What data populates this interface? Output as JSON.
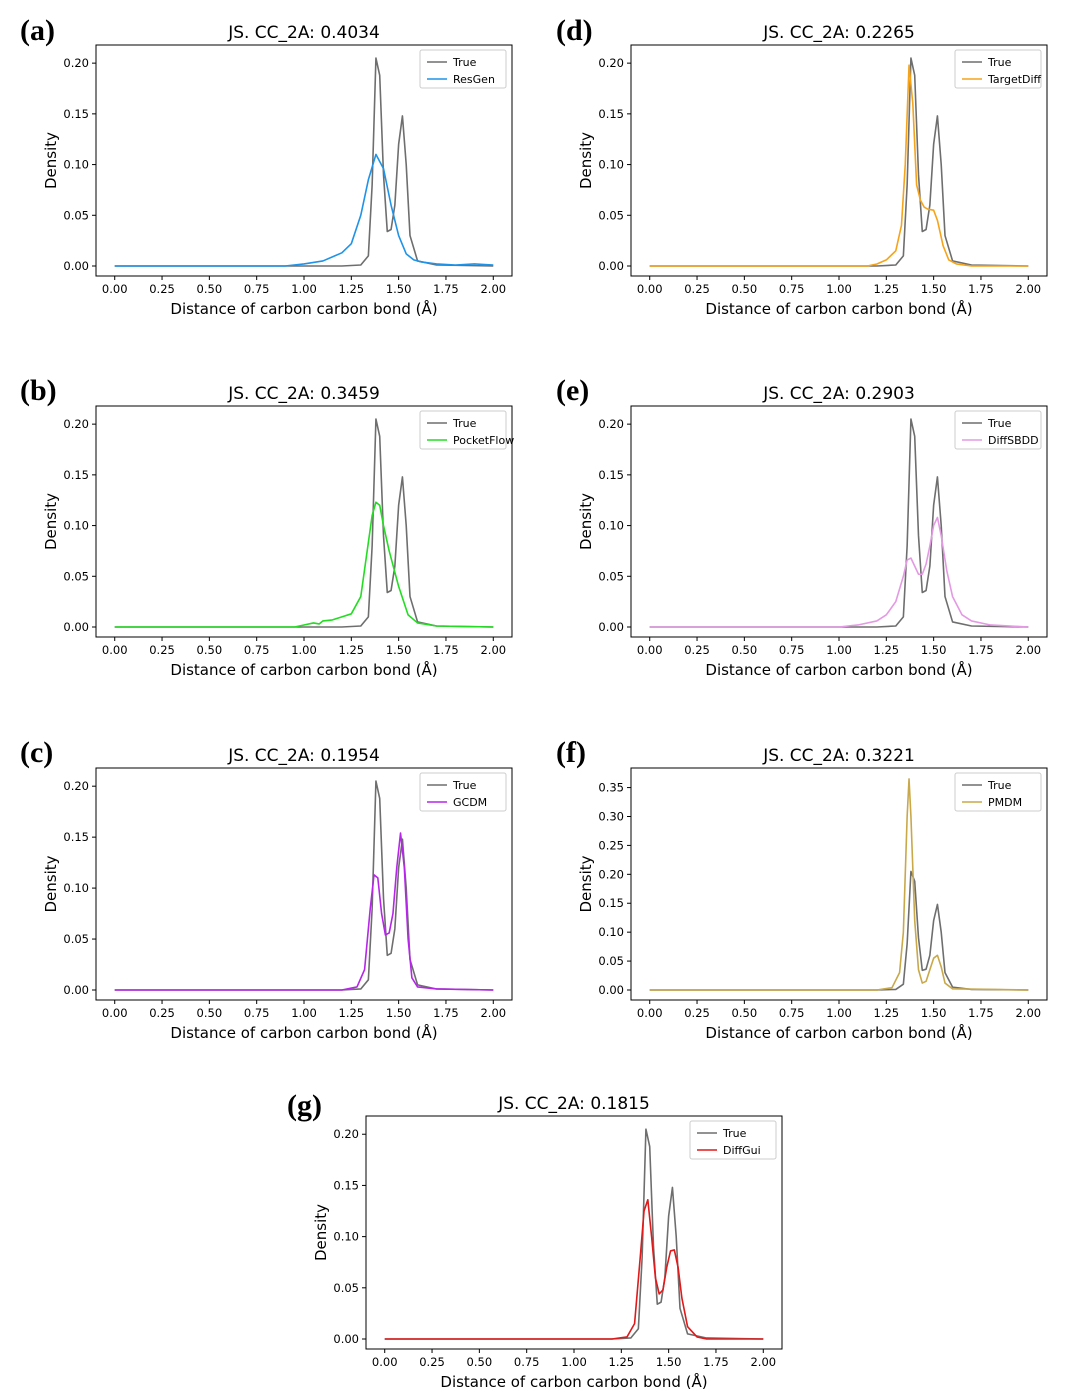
{
  "figure": {
    "xlabel": "Distance of carbon carbon bond (Å)",
    "ylabel": "Density"
  },
  "colors": {
    "true": "#6e6e6e",
    "ResGen": "#1f93e8",
    "PocketFlow": "#22dd22",
    "GCDM": "#b526e8",
    "TargetDiff": "#f5a31a",
    "DiffSBDD": "#e39ae3",
    "PMDM": "#c9a84a",
    "DiffGui": "#e0191a"
  },
  "chart_data": [
    {
      "panel": "(a)",
      "type": "line",
      "title": "JS. CC_2A: 0.4034",
      "xlabel": "Distance of carbon carbon bond (Å)",
      "ylabel": "Density",
      "xlim": [
        0,
        2
      ],
      "ylim": [
        0,
        0.21
      ],
      "xticks": [
        "0.00",
        "0.25",
        "0.50",
        "0.75",
        "1.00",
        "1.25",
        "1.50",
        "1.75",
        "2.00"
      ],
      "yticks": [
        "0.00",
        "0.05",
        "0.10",
        "0.15",
        "0.20"
      ],
      "legend": "top-right",
      "series": [
        {
          "name": "True",
          "color_key": "true",
          "x": [
            0,
            1.2,
            1.3,
            1.34,
            1.36,
            1.38,
            1.4,
            1.42,
            1.44,
            1.46,
            1.48,
            1.5,
            1.52,
            1.54,
            1.56,
            1.6,
            1.7,
            2.0
          ],
          "y": [
            0,
            0,
            0.001,
            0.01,
            0.08,
            0.205,
            0.188,
            0.09,
            0.034,
            0.036,
            0.06,
            0.12,
            0.148,
            0.1,
            0.03,
            0.005,
            0.001,
            0
          ]
        },
        {
          "name": "ResGen",
          "color_key": "ResGen",
          "x": [
            0,
            0.9,
            1.0,
            1.1,
            1.15,
            1.2,
            1.25,
            1.3,
            1.34,
            1.38,
            1.42,
            1.46,
            1.5,
            1.54,
            1.58,
            1.62,
            1.7,
            1.8,
            1.9,
            2.0
          ],
          "y": [
            0,
            0,
            0.002,
            0.005,
            0.009,
            0.013,
            0.022,
            0.05,
            0.085,
            0.11,
            0.096,
            0.06,
            0.03,
            0.012,
            0.006,
            0.004,
            0.002,
            0.001,
            0.002,
            0.001
          ]
        }
      ]
    },
    {
      "panel": "(b)",
      "type": "line",
      "title": "JS. CC_2A: 0.3459",
      "xlabel": "Distance of carbon carbon bond (Å)",
      "ylabel": "Density",
      "xlim": [
        0,
        2
      ],
      "ylim": [
        0,
        0.21
      ],
      "xticks": [
        "0.00",
        "0.25",
        "0.50",
        "0.75",
        "1.00",
        "1.25",
        "1.50",
        "1.75",
        "2.00"
      ],
      "yticks": [
        "0.00",
        "0.05",
        "0.10",
        "0.15",
        "0.20"
      ],
      "legend": "top-right",
      "series": [
        {
          "name": "True",
          "color_key": "true",
          "x": [
            0,
            1.2,
            1.3,
            1.34,
            1.36,
            1.38,
            1.4,
            1.42,
            1.44,
            1.46,
            1.48,
            1.5,
            1.52,
            1.54,
            1.56,
            1.6,
            1.7,
            2.0
          ],
          "y": [
            0,
            0,
            0.001,
            0.01,
            0.08,
            0.205,
            0.188,
            0.09,
            0.034,
            0.036,
            0.06,
            0.12,
            0.148,
            0.1,
            0.03,
            0.005,
            0.001,
            0
          ]
        },
        {
          "name": "PocketFlow",
          "color_key": "PocketFlow",
          "x": [
            0,
            0.95,
            1.0,
            1.05,
            1.08,
            1.1,
            1.15,
            1.2,
            1.25,
            1.3,
            1.33,
            1.36,
            1.38,
            1.4,
            1.42,
            1.45,
            1.5,
            1.55,
            1.6,
            1.7,
            2.0
          ],
          "y": [
            0,
            0,
            0.002,
            0.004,
            0.003,
            0.006,
            0.007,
            0.01,
            0.013,
            0.03,
            0.07,
            0.11,
            0.123,
            0.12,
            0.1,
            0.075,
            0.04,
            0.012,
            0.004,
            0.001,
            0
          ]
        }
      ]
    },
    {
      "panel": "(c)",
      "type": "line",
      "title": "JS. CC_2A: 0.1954",
      "xlabel": "Distance of carbon carbon bond (Å)",
      "ylabel": "Density",
      "xlim": [
        0,
        2
      ],
      "ylim": [
        0,
        0.21
      ],
      "xticks": [
        "0.00",
        "0.25",
        "0.50",
        "0.75",
        "1.00",
        "1.25",
        "1.50",
        "1.75",
        "2.00"
      ],
      "yticks": [
        "0.00",
        "0.05",
        "0.10",
        "0.15",
        "0.20"
      ],
      "legend": "top-right",
      "series": [
        {
          "name": "True",
          "color_key": "true",
          "x": [
            0,
            1.2,
            1.3,
            1.34,
            1.36,
            1.38,
            1.4,
            1.42,
            1.44,
            1.46,
            1.48,
            1.5,
            1.52,
            1.54,
            1.56,
            1.6,
            1.7,
            2.0
          ],
          "y": [
            0,
            0,
            0.001,
            0.01,
            0.08,
            0.205,
            0.188,
            0.09,
            0.034,
            0.036,
            0.06,
            0.12,
            0.148,
            0.1,
            0.03,
            0.005,
            0.001,
            0
          ]
        },
        {
          "name": "GCDM",
          "color_key": "GCDM",
          "x": [
            0,
            1.2,
            1.28,
            1.32,
            1.35,
            1.37,
            1.39,
            1.41,
            1.43,
            1.45,
            1.47,
            1.49,
            1.51,
            1.53,
            1.55,
            1.57,
            1.6,
            1.7,
            2.0
          ],
          "y": [
            0,
            0,
            0.003,
            0.02,
            0.08,
            0.113,
            0.11,
            0.075,
            0.054,
            0.056,
            0.075,
            0.12,
            0.154,
            0.12,
            0.05,
            0.012,
            0.003,
            0.001,
            0
          ]
        }
      ]
    },
    {
      "panel": "(d)",
      "type": "line",
      "title": "JS. CC_2A: 0.2265",
      "xlabel": "Distance of carbon carbon bond (Å)",
      "ylabel": "Density",
      "xlim": [
        0,
        2
      ],
      "ylim": [
        0,
        0.21
      ],
      "xticks": [
        "0.00",
        "0.25",
        "0.50",
        "0.75",
        "1.00",
        "1.25",
        "1.50",
        "1.75",
        "2.00"
      ],
      "yticks": [
        "0.00",
        "0.05",
        "0.10",
        "0.15",
        "0.20"
      ],
      "legend": "top-right",
      "series": [
        {
          "name": "True",
          "color_key": "true",
          "x": [
            0,
            1.2,
            1.3,
            1.34,
            1.36,
            1.38,
            1.4,
            1.42,
            1.44,
            1.46,
            1.48,
            1.5,
            1.52,
            1.54,
            1.56,
            1.6,
            1.7,
            2.0
          ],
          "y": [
            0,
            0,
            0.001,
            0.01,
            0.08,
            0.205,
            0.188,
            0.09,
            0.034,
            0.036,
            0.06,
            0.12,
            0.148,
            0.1,
            0.03,
            0.005,
            0.001,
            0
          ]
        },
        {
          "name": "TargetDiff",
          "color_key": "TargetDiff",
          "x": [
            0,
            1.15,
            1.2,
            1.25,
            1.3,
            1.33,
            1.35,
            1.37,
            1.39,
            1.41,
            1.43,
            1.45,
            1.47,
            1.5,
            1.52,
            1.55,
            1.58,
            1.62,
            1.7,
            2.0
          ],
          "y": [
            0,
            0,
            0.002,
            0.006,
            0.015,
            0.04,
            0.1,
            0.198,
            0.16,
            0.08,
            0.065,
            0.058,
            0.056,
            0.055,
            0.045,
            0.02,
            0.006,
            0.002,
            0,
            0
          ]
        }
      ]
    },
    {
      "panel": "(e)",
      "type": "line",
      "title": "JS. CC_2A: 0.2903",
      "xlabel": "Distance of carbon carbon bond (Å)",
      "ylabel": "Density",
      "xlim": [
        0,
        2
      ],
      "ylim": [
        0,
        0.21
      ],
      "xticks": [
        "0.00",
        "0.25",
        "0.50",
        "0.75",
        "1.00",
        "1.25",
        "1.50",
        "1.75",
        "2.00"
      ],
      "yticks": [
        "0.00",
        "0.05",
        "0.10",
        "0.15",
        "0.20"
      ],
      "legend": "top-right",
      "series": [
        {
          "name": "True",
          "color_key": "true",
          "x": [
            0,
            1.2,
            1.3,
            1.34,
            1.36,
            1.38,
            1.4,
            1.42,
            1.44,
            1.46,
            1.48,
            1.5,
            1.52,
            1.54,
            1.56,
            1.6,
            1.7,
            2.0
          ],
          "y": [
            0,
            0,
            0.001,
            0.01,
            0.08,
            0.205,
            0.188,
            0.09,
            0.034,
            0.036,
            0.06,
            0.12,
            0.148,
            0.1,
            0.03,
            0.005,
            0.001,
            0
          ]
        },
        {
          "name": "DiffSBDD",
          "color_key": "DiffSBDD",
          "x": [
            0,
            1.0,
            1.1,
            1.2,
            1.25,
            1.3,
            1.34,
            1.36,
            1.38,
            1.4,
            1.42,
            1.44,
            1.46,
            1.48,
            1.5,
            1.52,
            1.54,
            1.57,
            1.6,
            1.65,
            1.7,
            1.8,
            2.0
          ],
          "y": [
            0,
            0,
            0.002,
            0.006,
            0.012,
            0.025,
            0.05,
            0.066,
            0.068,
            0.06,
            0.052,
            0.052,
            0.062,
            0.08,
            0.1,
            0.108,
            0.09,
            0.055,
            0.03,
            0.012,
            0.006,
            0.002,
            0
          ]
        }
      ]
    },
    {
      "panel": "(f)",
      "type": "line",
      "title": "JS. CC_2A: 0.3221",
      "xlabel": "Distance of carbon carbon bond (Å)",
      "ylabel": "Density",
      "xlim": [
        0,
        2
      ],
      "ylim": [
        0,
        0.37
      ],
      "xticks": [
        "0.00",
        "0.25",
        "0.50",
        "0.75",
        "1.00",
        "1.25",
        "1.50",
        "1.75",
        "2.00"
      ],
      "yticks": [
        "0.00",
        "0.05",
        "0.10",
        "0.15",
        "0.20",
        "0.25",
        "0.30",
        "0.35"
      ],
      "legend": "top-right",
      "series": [
        {
          "name": "True",
          "color_key": "true",
          "x": [
            0,
            1.2,
            1.3,
            1.34,
            1.36,
            1.38,
            1.4,
            1.42,
            1.44,
            1.46,
            1.48,
            1.5,
            1.52,
            1.54,
            1.56,
            1.6,
            1.7,
            2.0
          ],
          "y": [
            0,
            0,
            0.001,
            0.01,
            0.08,
            0.205,
            0.188,
            0.09,
            0.034,
            0.036,
            0.06,
            0.12,
            0.148,
            0.1,
            0.03,
            0.005,
            0.001,
            0
          ]
        },
        {
          "name": "PMDM",
          "color_key": "PMDM",
          "x": [
            0,
            1.2,
            1.28,
            1.32,
            1.34,
            1.36,
            1.37,
            1.38,
            1.4,
            1.42,
            1.44,
            1.46,
            1.48,
            1.5,
            1.52,
            1.54,
            1.56,
            1.6,
            2.0
          ],
          "y": [
            0,
            0,
            0.004,
            0.03,
            0.1,
            0.3,
            0.365,
            0.3,
            0.12,
            0.035,
            0.012,
            0.015,
            0.035,
            0.055,
            0.06,
            0.04,
            0.012,
            0.002,
            0
          ]
        }
      ]
    },
    {
      "panel": "(g)",
      "type": "line",
      "title": "JS. CC_2A: 0.1815",
      "xlabel": "Distance of carbon carbon bond (Å)",
      "ylabel": "Density",
      "xlim": [
        0,
        2
      ],
      "ylim": [
        0,
        0.21
      ],
      "xticks": [
        "0.00",
        "0.25",
        "0.50",
        "0.75",
        "1.00",
        "1.25",
        "1.50",
        "1.75",
        "2.00"
      ],
      "yticks": [
        "0.00",
        "0.05",
        "0.10",
        "0.15",
        "0.20"
      ],
      "legend": "top-right",
      "series": [
        {
          "name": "True",
          "color_key": "true",
          "x": [
            0,
            1.2,
            1.3,
            1.34,
            1.36,
            1.38,
            1.4,
            1.42,
            1.44,
            1.46,
            1.48,
            1.5,
            1.52,
            1.54,
            1.56,
            1.6,
            1.7,
            2.0
          ],
          "y": [
            0,
            0,
            0.001,
            0.01,
            0.08,
            0.205,
            0.188,
            0.09,
            0.034,
            0.036,
            0.06,
            0.12,
            0.148,
            0.1,
            0.03,
            0.005,
            0.001,
            0
          ]
        },
        {
          "name": "DiffGui",
          "color_key": "DiffGui",
          "x": [
            0,
            1.2,
            1.28,
            1.32,
            1.35,
            1.37,
            1.39,
            1.41,
            1.43,
            1.45,
            1.47,
            1.49,
            1.51,
            1.53,
            1.55,
            1.57,
            1.6,
            1.65,
            1.7,
            2.0
          ],
          "y": [
            0,
            0,
            0.002,
            0.015,
            0.08,
            0.125,
            0.136,
            0.1,
            0.06,
            0.044,
            0.048,
            0.07,
            0.086,
            0.087,
            0.07,
            0.04,
            0.012,
            0.002,
            0,
            0
          ]
        }
      ]
    }
  ]
}
